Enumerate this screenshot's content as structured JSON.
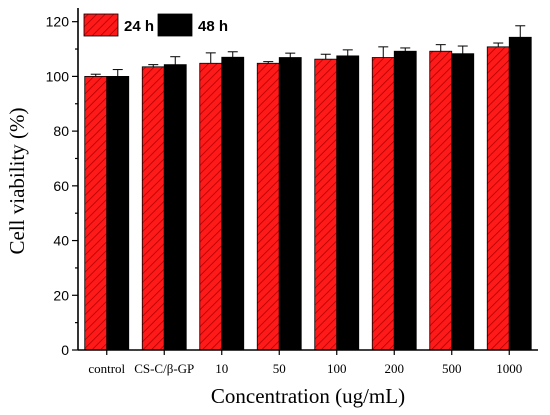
{
  "chart_data": {
    "type": "bar",
    "categories": [
      "control",
      "CS-C/β-GP",
      "10",
      "50",
      "100",
      "200",
      "500",
      "1000"
    ],
    "series": [
      {
        "name": "24 h",
        "color": "#ff0000",
        "pattern": "hatched",
        "values": [
          100.0,
          103.5,
          104.8,
          104.8,
          106.3,
          106.9,
          109.2,
          110.8
        ],
        "errors": [
          0.8,
          0.8,
          3.8,
          0.6,
          1.8,
          3.9,
          2.4,
          1.4
        ]
      },
      {
        "name": "48 h",
        "color": "#000000",
        "pattern": "solid",
        "values": [
          100.0,
          104.3,
          107.0,
          106.9,
          107.5,
          109.2,
          108.3,
          114.3
        ],
        "errors": [
          2.5,
          2.9,
          2.0,
          1.6,
          2.2,
          1.2,
          2.8,
          4.2
        ]
      }
    ],
    "xlabel": "Concentration (ug/mL)",
    "ylabel": "Cell viability (%)",
    "ylim": [
      0,
      125
    ],
    "yticks": [
      0,
      20,
      40,
      60,
      80,
      100,
      120
    ],
    "grid": false,
    "legend_position": "top-left"
  }
}
